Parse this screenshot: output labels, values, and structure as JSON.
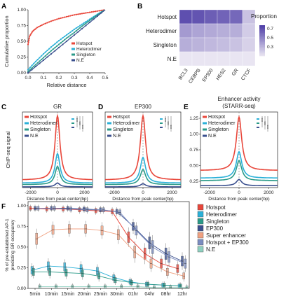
{
  "panels": {
    "A": {
      "letter": "A"
    },
    "B": {
      "letter": "B"
    },
    "C": {
      "letter": "C"
    },
    "D": {
      "letter": "D"
    },
    "E": {
      "letter": "E"
    },
    "F": {
      "letter": "F"
    }
  },
  "colors": {
    "hotspot": "#e8463a",
    "heterodimer": "#2ab0d8",
    "singleton": "#2a9a88",
    "ne": "#3a4f8e",
    "ep300": "#3a4f8e",
    "super_enhancer": "#f0a080",
    "hotspot_ep300": "#7b8cc0",
    "ne_f": "#8fd0c0",
    "heat_low": "#eeeaf4",
    "heat_high": "#5040a8"
  },
  "chart_data": [
    {
      "id": "A",
      "type": "line",
      "xlabel": "Relative distance",
      "ylabel": "Cumulative proportion",
      "xlim": [
        0,
        0.5
      ],
      "ylim": [
        0,
        1
      ],
      "xticks": [
        "0.0",
        "0.1",
        "0.2",
        "0.3",
        "0.4",
        "0.5"
      ],
      "yticks": [
        "0.00",
        "0.25",
        "0.50",
        "0.75",
        "1.00"
      ],
      "legend_position": "bottom-right",
      "series": [
        {
          "name": "Hotspot",
          "color": "#e8463a",
          "x": [
            0,
            0.01,
            0.03,
            0.06,
            0.1,
            0.15,
            0.2,
            0.25,
            0.3,
            0.35,
            0.4,
            0.45,
            0.5
          ],
          "y": [
            0.45,
            0.58,
            0.66,
            0.72,
            0.77,
            0.82,
            0.86,
            0.89,
            0.92,
            0.94,
            0.96,
            0.98,
            1.0
          ]
        },
        {
          "name": "Heterodimer",
          "color": "#2ab0d8",
          "x": [
            0,
            0.05,
            0.1,
            0.15,
            0.2,
            0.25,
            0.3,
            0.35,
            0.4,
            0.45,
            0.5
          ],
          "y": [
            0.05,
            0.18,
            0.3,
            0.41,
            0.51,
            0.6,
            0.69,
            0.77,
            0.85,
            0.93,
            1.0
          ]
        },
        {
          "name": "Singleton",
          "color": "#2a9a88",
          "x": [
            0,
            0.05,
            0.1,
            0.15,
            0.2,
            0.25,
            0.3,
            0.35,
            0.4,
            0.45,
            0.5
          ],
          "y": [
            0.02,
            0.13,
            0.24,
            0.35,
            0.45,
            0.55,
            0.64,
            0.74,
            0.83,
            0.92,
            1.0
          ]
        },
        {
          "name": "N.E",
          "color": "#3a4f8e",
          "x": [
            0,
            0.1,
            0.2,
            0.3,
            0.4,
            0.5
          ],
          "y": [
            0.0,
            0.2,
            0.4,
            0.6,
            0.8,
            1.0
          ]
        }
      ]
    },
    {
      "id": "B",
      "type": "heatmap",
      "rows": [
        "Hotspot",
        "Heterodimer",
        "Singleton",
        "N.E"
      ],
      "columns": [
        "BCL3",
        "CEBPB",
        "EP300",
        "HES2",
        "GR",
        "CTCF"
      ],
      "values": [
        [
          0.72,
          0.7,
          0.66,
          0.64,
          0.62,
          0.26
        ],
        [
          0.42,
          0.38,
          0.36,
          0.34,
          0.34,
          0.22
        ],
        [
          0.34,
          0.32,
          0.3,
          0.28,
          0.26,
          0.2
        ],
        [
          0.12,
          0.12,
          0.12,
          0.12,
          0.12,
          0.12
        ]
      ],
      "legend_title": "Proportion",
      "legend_ticks": [
        "0.7",
        "0.5",
        "0.3"
      ],
      "legend_tick_values": [
        0.7,
        0.5,
        0.3
      ],
      "vmin": 0.1,
      "vmax": 0.78
    },
    {
      "id": "C",
      "type": "line",
      "title": "GR",
      "xlabel": "Distance from peak center(bp)",
      "ylabel": "ChIP-seq signal",
      "xlim": [
        -2600,
        2600
      ],
      "ylim": [
        0,
        1.0
      ],
      "xticks": [
        "-2000",
        "0",
        "2000"
      ],
      "legend_position": "top-left",
      "significance": [
        "***",
        "***",
        "***"
      ],
      "series": [
        {
          "name": "Hotspot",
          "color": "#e8463a",
          "peak": 0.95,
          "base": 0.1
        },
        {
          "name": "Heterodimer",
          "color": "#2ab0d8",
          "peak": 0.45,
          "base": 0.06
        },
        {
          "name": "Singleton",
          "color": "#2a9a88",
          "peak": 0.28,
          "base": 0.04
        },
        {
          "name": "N.E",
          "color": "#3a4f8e",
          "peak": 0.06,
          "base": 0.01
        }
      ]
    },
    {
      "id": "D",
      "type": "line",
      "title": "EP300",
      "xlabel": "Distance from peak center(bp)",
      "xlim": [
        -2600,
        2600
      ],
      "ylim": [
        0,
        1.0
      ],
      "xticks": [
        "-2000",
        "0",
        "2000"
      ],
      "legend_position": "top-left",
      "significance": [
        "***",
        "***",
        "***"
      ],
      "series": [
        {
          "name": "Hotspot",
          "color": "#e8463a",
          "peak": 0.95,
          "base": 0.1
        },
        {
          "name": "Heterodimer",
          "color": "#2ab0d8",
          "peak": 0.4,
          "base": 0.06
        },
        {
          "name": "Singleton",
          "color": "#2a9a88",
          "peak": 0.24,
          "base": 0.04
        },
        {
          "name": "N.E",
          "color": "#3a4f8e",
          "peak": 0.05,
          "base": 0.01
        }
      ]
    },
    {
      "id": "E",
      "type": "line",
      "title": "Enhancer activity",
      "subtitle": "(STARR-seq)",
      "xlabel": "Distance from peak center(bp)",
      "xlim": [
        -2600,
        2600
      ],
      "ylim": [
        0.15,
        1.35
      ],
      "xticks": [
        "-2000",
        "0",
        "2000"
      ],
      "yticks": [
        "0.25",
        "0.50",
        "0.75",
        "1.00",
        "1.25"
      ],
      "legend_position": "top-left",
      "significance": [
        "***",
        "***",
        "***"
      ],
      "series": [
        {
          "name": "Hotspot",
          "color": "#e8463a",
          "peak": 1.27,
          "base": 0.42
        },
        {
          "name": "Heterodimer",
          "color": "#2ab0d8",
          "peak": 0.72,
          "base": 0.3
        },
        {
          "name": "Singleton",
          "color": "#2a9a88",
          "peak": 0.58,
          "base": 0.26
        },
        {
          "name": "N.E",
          "color": "#3a4f8e",
          "peak": 0.28,
          "base": 0.18
        }
      ]
    },
    {
      "id": "F",
      "type": "line",
      "ylabel": "% of pre-established AP-1\npredicting GR occupancy",
      "categories": [
        "5min",
        "10min",
        "15min",
        "20min",
        "25min",
        "30min",
        "01hr",
        "04hr",
        "08hr",
        "12hr"
      ],
      "ylim": [
        0,
        1.05
      ],
      "yticks": [
        "0.00",
        "0.25",
        "0.50",
        "0.75",
        "1.00"
      ],
      "legend_position": "right",
      "series": [
        {
          "name": "Hotspot",
          "color": "#e8463a",
          "values": [
            0.97,
            0.96,
            0.96,
            0.95,
            0.94,
            0.93,
            0.62,
            0.42,
            0.3,
            0.24
          ]
        },
        {
          "name": "Heterodimer",
          "color": "#2ab0d8",
          "values": [
            0.22,
            0.27,
            0.26,
            0.24,
            0.21,
            0.13,
            0.08,
            0.05,
            0.04,
            0.03
          ]
        },
        {
          "name": "Singleton",
          "color": "#2a9a88",
          "values": [
            0.2,
            0.2,
            0.19,
            0.18,
            0.15,
            0.1,
            0.07,
            0.05,
            0.04,
            0.03
          ]
        },
        {
          "name": "EP300",
          "color": "#3a4f8e",
          "values": [
            0.97,
            0.97,
            0.97,
            0.96,
            0.95,
            0.93,
            0.75,
            0.55,
            0.42,
            0.33
          ]
        },
        {
          "name": "Super enhancer",
          "color": "#f0a080",
          "values": [
            0.6,
            0.71,
            0.72,
            0.72,
            0.7,
            0.65,
            0.44,
            0.3,
            0.2,
            0.15
          ]
        },
        {
          "name": "Hotspot + EP300",
          "color": "#7b8cc0",
          "values": [
            0.97,
            0.97,
            0.96,
            0.95,
            0.95,
            0.92,
            0.7,
            0.5,
            0.38,
            0.3
          ]
        },
        {
          "name": "N.E",
          "color": "#8fd0c0",
          "values": [
            0.02,
            0.02,
            0.02,
            0.02,
            0.02,
            0.02,
            0.02,
            0.01,
            0.01,
            0.01
          ]
        }
      ]
    }
  ]
}
